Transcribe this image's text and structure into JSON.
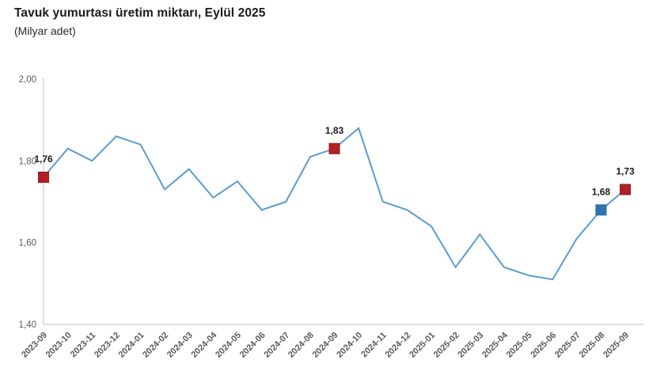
{
  "header": {
    "title": "Tavuk yumurtası üretim miktarı, Eylül 2025",
    "subtitle": "(Milyar adet)"
  },
  "chart_data": {
    "type": "line",
    "title": "Tavuk yumurtası üretim miktarı, Eylül 2025",
    "subtitle": "(Milyar adet)",
    "x": [
      "2023-09",
      "2023-10",
      "2023-11",
      "2023-12",
      "2024-01",
      "2024-02",
      "2024-03",
      "2024-04",
      "2024-05",
      "2024-06",
      "2024-07",
      "2024-08",
      "2024-09",
      "2024-10",
      "2024-11",
      "2024-12",
      "2025-01",
      "2025-02",
      "2025-03",
      "2025-04",
      "2025-05",
      "2025-06",
      "2025-07",
      "2025-08",
      "2025-09"
    ],
    "series": [
      {
        "name": "Tavuk yumurtası üretim miktarı (Milyar adet)",
        "values": [
          1.76,
          1.83,
          1.8,
          1.86,
          1.84,
          1.73,
          1.78,
          1.71,
          1.75,
          1.68,
          1.7,
          1.81,
          1.83,
          1.88,
          1.7,
          1.68,
          1.64,
          1.54,
          1.62,
          1.54,
          1.52,
          1.51,
          1.61,
          1.68,
          1.73
        ]
      }
    ],
    "ylim": [
      1.4,
      2.0
    ],
    "yticks": [
      2.0,
      1.8,
      1.6,
      1.4
    ],
    "ytick_labels": [
      "2,00",
      "1,80",
      "1,60",
      "1,40"
    ],
    "grid": false,
    "legend_position": "none",
    "colors": {
      "line": "#5B9BD5",
      "axis": "#D6D6D6",
      "tick_text": "#595959",
      "label_text": "#1a1a1a",
      "marker_red": "#B02126",
      "marker_red_border": "#8E191D",
      "marker_blue": "#2E75B6",
      "marker_blue_border": "#25639C"
    },
    "highlighted_points": [
      {
        "x": "2023-09",
        "value": 1.76,
        "label": "1,76",
        "color_key": "red"
      },
      {
        "x": "2024-09",
        "value": 1.83,
        "label": "1,83",
        "color_key": "red"
      },
      {
        "x": "2025-08",
        "value": 1.68,
        "label": "1,68",
        "color_key": "blue"
      },
      {
        "x": "2025-09",
        "value": 1.73,
        "label": "1,73",
        "color_key": "red"
      }
    ]
  }
}
